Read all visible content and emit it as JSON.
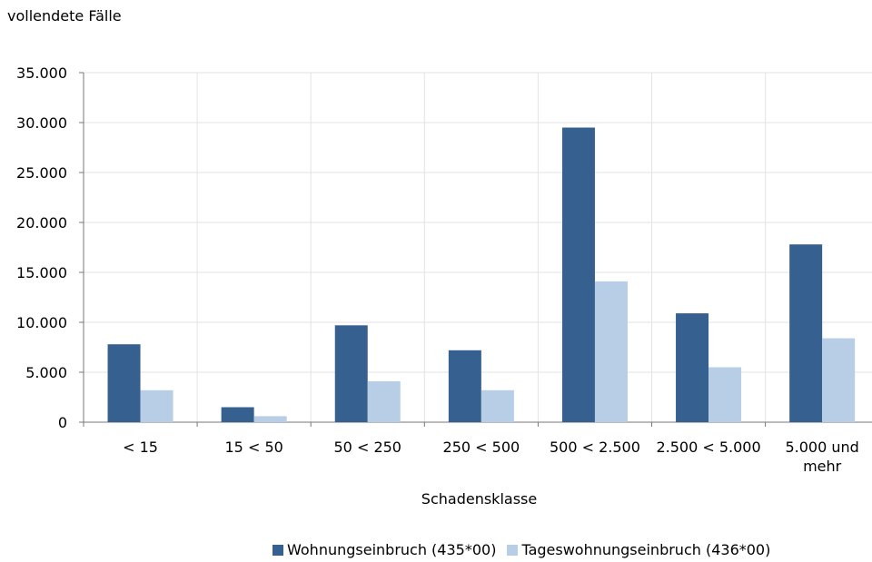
{
  "chart_data": {
    "type": "bar",
    "ylabel": "vollendete Fälle",
    "xlabel": "Schadensklasse",
    "categories": [
      [
        "< 15"
      ],
      [
        "15 < 50"
      ],
      [
        "50 < 250"
      ],
      [
        "250 < 500"
      ],
      [
        "500 < 2.500"
      ],
      [
        "2.500 < 5.000"
      ],
      [
        "5.000 und",
        "mehr"
      ]
    ],
    "yticks": [
      "0",
      "5.000",
      "10.000",
      "15.000",
      "20.000",
      "25.000",
      "30.000",
      "35.000"
    ],
    "ylim": [
      0,
      35000
    ],
    "grid": true,
    "legend_position": "bottom",
    "series": [
      {
        "name": "Wohnungseinbruch (435*00)",
        "color": "#35608f",
        "values": [
          7800,
          1500,
          9700,
          7200,
          29500,
          10900,
          17800
        ]
      },
      {
        "name": "Tageswohnungseinbruch (436*00)",
        "color": "#b8cde6",
        "values": [
          3200,
          600,
          4100,
          3200,
          14100,
          5500,
          8400
        ]
      }
    ]
  }
}
